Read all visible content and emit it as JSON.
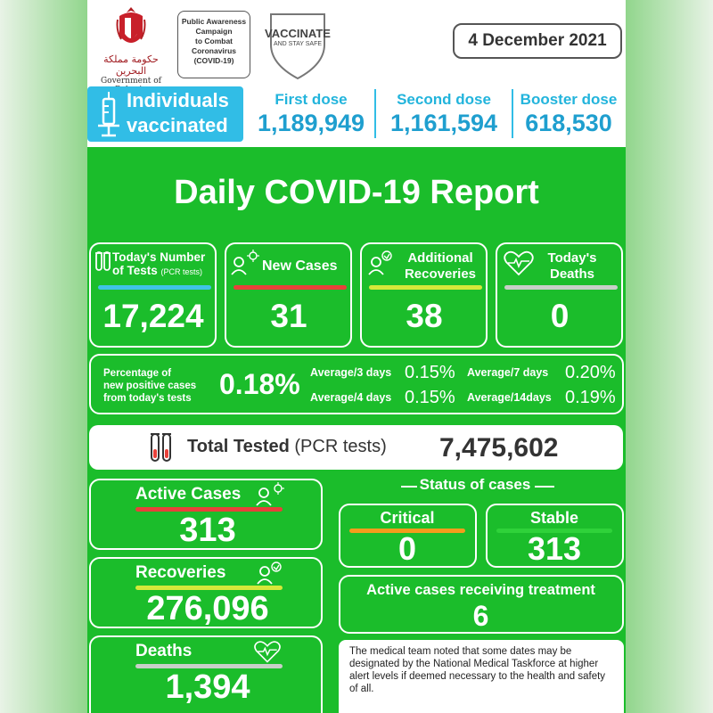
{
  "header": {
    "gov_script": "حكومة مملكة البحرين",
    "gov_text": "Government of Bahrain",
    "campaign_lines": [
      "Public Awareness",
      "Campaign",
      "to Combat",
      "Coronavirus",
      "(COVID-19)"
    ],
    "vaccinate_title": "VACCINATE",
    "vaccinate_sub": "AND STAY SAFE",
    "date": "4 December 2021"
  },
  "vaccination": {
    "label_line1": "Individuals",
    "label_line2": "vaccinated",
    "doses": [
      {
        "label": "First dose",
        "value": "1,189,949"
      },
      {
        "label": "Second dose",
        "value": "1,161,594"
      },
      {
        "label": "Booster dose",
        "value": "618,530"
      }
    ]
  },
  "title": "Daily COVID-19 Report",
  "daily": {
    "tests": {
      "label_line1": "Today's Number",
      "label_line2": "of Tests",
      "label_small": "(PCR tests)",
      "value": "17,224"
    },
    "new_cases": {
      "label": "New Cases",
      "value": "31"
    },
    "recoveries": {
      "label_line1": "Additional",
      "label_line2": "Recoveries",
      "value": "38"
    },
    "deaths": {
      "label_line1": "Today's",
      "label_line2": "Deaths",
      "value": "0"
    }
  },
  "percentage": {
    "label_lines": [
      "Percentage of",
      "new positive cases",
      "from today's tests"
    ],
    "value": "0.18%",
    "averages": [
      {
        "label": "Average/3 days",
        "value": "0.15%"
      },
      {
        "label": "Average/7 days",
        "value": "0.20%"
      },
      {
        "label": "Average/4 days",
        "value": "0.15%"
      },
      {
        "label": "Average/14days",
        "value": "0.19%"
      }
    ]
  },
  "total_tested": {
    "label_bold": "Total Tested",
    "label_light": "(PCR tests)",
    "value": "7,475,602"
  },
  "summary": {
    "active": {
      "label": "Active Cases",
      "value": "313"
    },
    "recoveries": {
      "label": "Recoveries",
      "value": "276,096"
    },
    "deaths": {
      "label": "Deaths",
      "value": "1,394"
    }
  },
  "status": {
    "title": "Status of cases",
    "critical": {
      "label": "Critical",
      "value": "0"
    },
    "stable": {
      "label": "Stable",
      "value": "313"
    },
    "treatment": {
      "label": "Active cases receiving treatment",
      "value": "6"
    }
  },
  "note": "The medical team noted that some dates may be designated by the National Medical Taskforce at higher alert levels if deemed necessary to the health and safety of all.",
  "colors": {
    "background": "#1bbd2b",
    "accent_blue": "#31bde6",
    "bar_blue": "#3fc4e6",
    "bar_red": "#e8413a",
    "bar_yellow": "#d6e83a",
    "bar_gray": "#c8cfc8",
    "bar_orange": "#f39c1c",
    "bar_green": "#2fd23a"
  },
  "icons": [
    "bahrain-emblem-icon",
    "shield-icon",
    "syringe-icon",
    "test-tubes-icon",
    "person-virus-icon",
    "person-recovery-icon",
    "heart-pulse-icon"
  ]
}
